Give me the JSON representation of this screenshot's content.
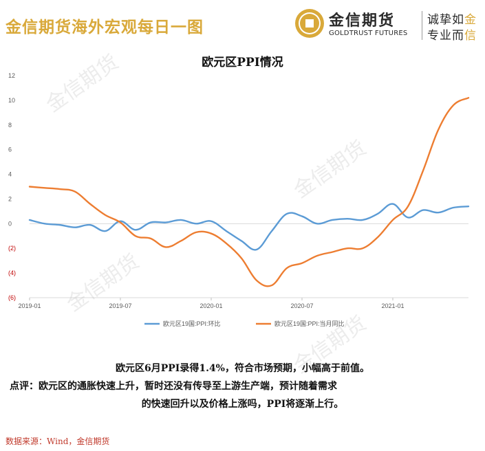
{
  "header": {
    "title": "金信期货海外宏观每日一图",
    "brand_name": "金信期货",
    "brand_en": "GOLDTRUST FUTURES",
    "slogan_line1_a": "诚挚如",
    "slogan_line1_b": "金",
    "slogan_line2_a": "专业而",
    "slogan_line2_b": "信"
  },
  "watermark_text": "金信期货",
  "caption": {
    "line1": "欧元区6月PPI录得1.4%，符合市场预期，小幅高于前值。",
    "line2": "点评：欧元区的通胀快速上升，暂时还没有传导至上游生产端，预计随着需求",
    "line3": "的快速回升以及价格上涨吗，PPI将逐渐上行。"
  },
  "source": "数据来源：Wind，金信期货",
  "colors": {
    "brand_gold": "#d9a93a",
    "series_mom": "#5b9bd5",
    "series_yoy": "#ed7d31",
    "negative_tick": "#c00000"
  },
  "chart_data": {
    "type": "line",
    "title": "欧元区PPI情况",
    "ylim": [
      -6,
      12
    ],
    "yticks": [
      {
        "value": 12,
        "label": "12"
      },
      {
        "value": 10,
        "label": "10"
      },
      {
        "value": 8,
        "label": "8"
      },
      {
        "value": 6,
        "label": "6"
      },
      {
        "value": 4,
        "label": "4"
      },
      {
        "value": 2,
        "label": "2"
      },
      {
        "value": 0,
        "label": "0"
      },
      {
        "value": -2,
        "label": "(2)"
      },
      {
        "value": -4,
        "label": "(4)"
      },
      {
        "value": -6,
        "label": "(6)"
      }
    ],
    "x": [
      "2019-01",
      "2019-02",
      "2019-03",
      "2019-04",
      "2019-05",
      "2019-06",
      "2019-07",
      "2019-08",
      "2019-09",
      "2019-10",
      "2019-11",
      "2019-12",
      "2020-01",
      "2020-02",
      "2020-03",
      "2020-04",
      "2020-05",
      "2020-06",
      "2020-07",
      "2020-08",
      "2020-09",
      "2020-10",
      "2020-11",
      "2020-12",
      "2021-01",
      "2021-02",
      "2021-03",
      "2021-04",
      "2021-05",
      "2021-06"
    ],
    "xticks": [
      "2019-01",
      "2019-07",
      "2020-01",
      "2020-07",
      "2021-01"
    ],
    "legend_position": "bottom",
    "series": [
      {
        "name": "欧元区19国:PPI:环比",
        "values": [
          0.3,
          0.0,
          -0.1,
          -0.3,
          -0.1,
          -0.6,
          0.2,
          -0.5,
          0.1,
          0.1,
          0.3,
          0.0,
          0.2,
          -0.6,
          -1.4,
          -2.1,
          -0.6,
          0.8,
          0.6,
          0.0,
          0.3,
          0.4,
          0.3,
          0.8,
          1.6,
          0.5,
          1.1,
          0.9,
          1.3,
          1.4
        ],
        "color": "#5b9bd5"
      },
      {
        "name": "欧元区19国:PPI:当月同比",
        "values": [
          3.0,
          2.9,
          2.8,
          2.6,
          1.6,
          0.7,
          0.1,
          -1.0,
          -1.2,
          -1.9,
          -1.4,
          -0.7,
          -0.8,
          -1.6,
          -2.8,
          -4.6,
          -5.0,
          -3.6,
          -3.2,
          -2.6,
          -2.3,
          -2.0,
          -2.0,
          -1.1,
          0.3,
          1.4,
          4.3,
          7.6,
          9.6,
          10.2
        ]
      }
    ]
  }
}
